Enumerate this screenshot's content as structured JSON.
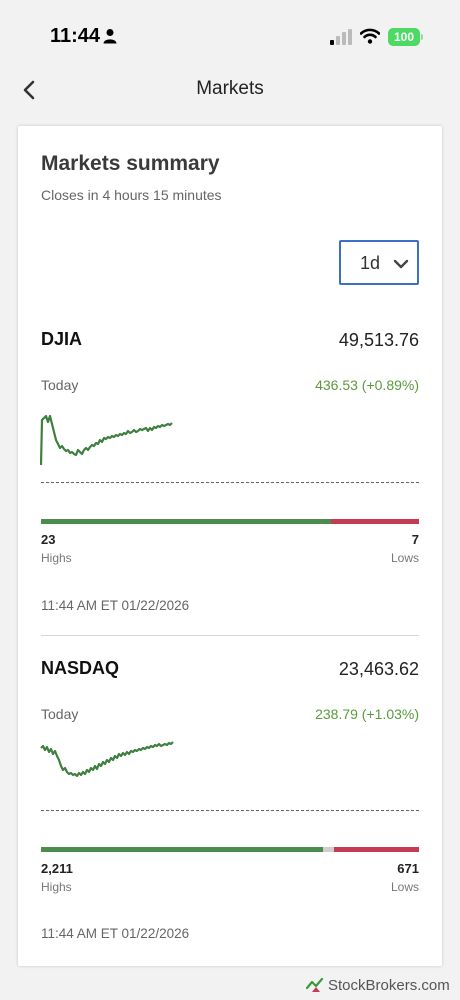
{
  "status_bar": {
    "time": "11:44",
    "battery": "100"
  },
  "nav": {
    "title": "Markets"
  },
  "card": {
    "title": "Markets summary",
    "subtitle": "Closes in 4 hours 15 minutes",
    "period": "1d"
  },
  "indices": [
    {
      "name": "DJIA",
      "value": "49,513.76",
      "today_label": "Today",
      "change": "436.53 (+0.89%)",
      "highs": "23",
      "highs_label": "Highs",
      "lows": "7",
      "lows_label": "Lows",
      "breadth": {
        "up": 0.767,
        "unchanged": 0.0,
        "down": 0.233
      },
      "timestamp": "11:44 AM ET 01/22/2026"
    },
    {
      "name": "NASDAQ",
      "value": "23,463.62",
      "today_label": "Today",
      "change": "238.79 (+1.03%)",
      "highs": "2,211",
      "highs_label": "Highs",
      "lows": "671",
      "lows_label": "Lows",
      "breadth": {
        "up": 0.745,
        "unchanged": 0.03,
        "down": 0.225
      },
      "timestamp": "11:44 AM ET 01/22/2026"
    }
  ],
  "watermark": {
    "text": "StockBrokers.com"
  },
  "colors": {
    "up": "#4b8b4e",
    "down": "#c43b52",
    "accent": "#3d6fc9",
    "positive_text": "#5a9a3c"
  }
}
